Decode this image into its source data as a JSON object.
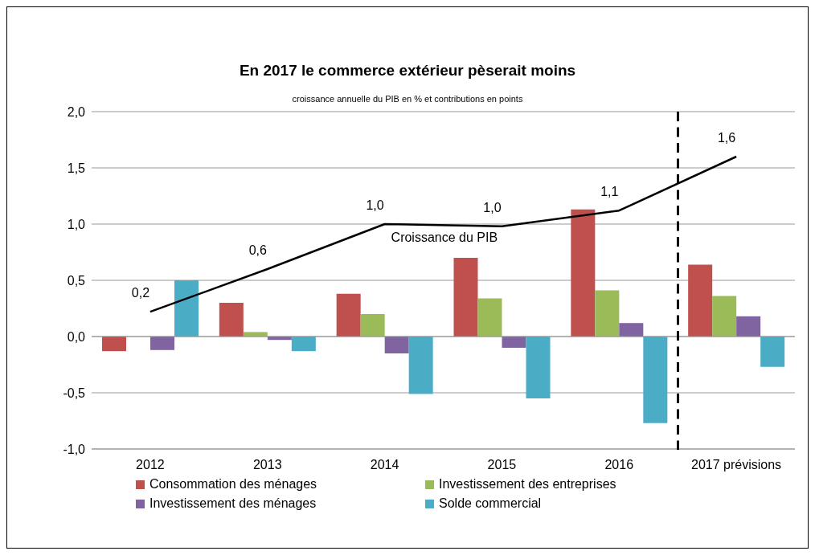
{
  "chart_data": {
    "type": "bar",
    "title": "En 2017 le commerce extérieur pèserait moins",
    "subtitle": "croissance annuelle du PIB en % et contributions en points",
    "categories": [
      "2012",
      "2013",
      "2014",
      "2015",
      "2016",
      "2017 prévisions"
    ],
    "series": [
      {
        "name": "Consommation des ménages",
        "color": "#c0504d",
        "values": [
          -0.13,
          0.3,
          0.38,
          0.7,
          1.13,
          0.64
        ]
      },
      {
        "name": "Investissement des entreprises",
        "color": "#9bbb59",
        "values": [
          null,
          0.04,
          0.2,
          0.34,
          0.41,
          0.36
        ]
      },
      {
        "name": "Investissement  des ménages",
        "color": "#8064a2",
        "values": [
          -0.12,
          -0.03,
          -0.15,
          -0.1,
          0.12,
          0.18
        ]
      },
      {
        "name": "Solde commercial",
        "color": "#4bacc6",
        "values": [
          0.5,
          -0.13,
          -0.51,
          -0.55,
          -0.77,
          -0.27
        ]
      },
      {
        "name": "Croissance du PIB",
        "type": "line",
        "color": "#000000",
        "values": [
          0.22,
          0.6,
          1.0,
          0.98,
          1.12,
          1.6
        ],
        "value_labels": [
          "0,2",
          "0,6",
          "1,0",
          "1,0",
          "1,1",
          "1,6"
        ]
      }
    ],
    "ylim": [
      -1,
      2
    ],
    "yticks": [
      {
        "value": -1,
        "label": "-1,0"
      },
      {
        "value": -0.5,
        "label": "-0,5"
      },
      {
        "value": 0,
        "label": "0,0"
      },
      {
        "value": 0.5,
        "label": "0,5"
      },
      {
        "value": 1,
        "label": "1,0"
      },
      {
        "value": 1.5,
        "label": "1,5"
      },
      {
        "value": 2,
        "label": "2,0"
      }
    ],
    "grid": "y",
    "legend": "bottom",
    "marker": "none"
  }
}
